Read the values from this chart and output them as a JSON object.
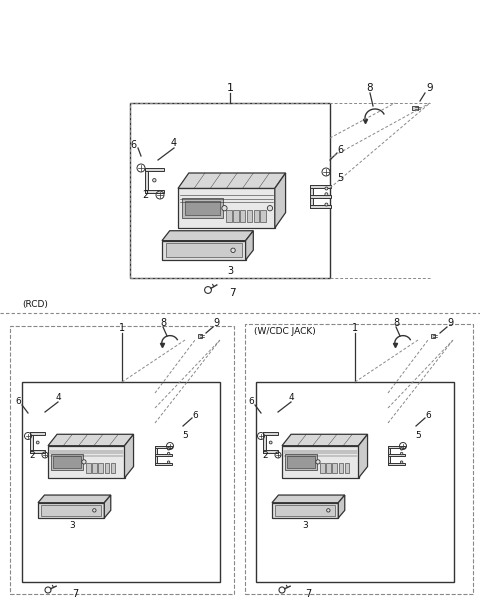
{
  "bg_color": "#ffffff",
  "line_color": "#333333",
  "dash_color": "#888888",
  "text_color": "#111111",
  "figsize": [
    4.8,
    6.08
  ],
  "dpi": 100,
  "lw_main": 0.9,
  "lw_thin": 0.5,
  "lw_dash": 0.7
}
